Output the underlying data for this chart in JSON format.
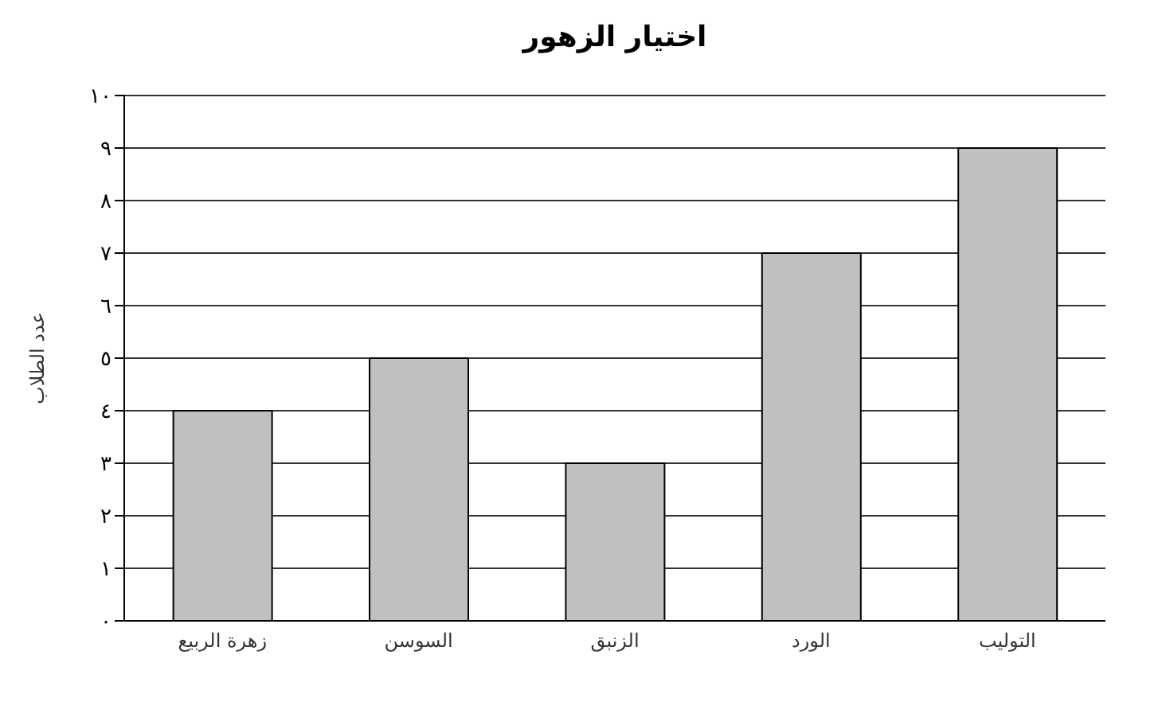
{
  "chart_data": {
    "type": "bar",
    "title": "اختيار الزهور",
    "ylabel": "عدد الطلاب",
    "categories": [
      "زهرة الربيع",
      "السوسن",
      "الزنبق",
      "الورد",
      "التوليب"
    ],
    "values": [
      4,
      5,
      3,
      7,
      9
    ],
    "color": "#c0c0c0",
    "ylim": [
      0,
      10
    ],
    "yticks": [
      {
        "value": 0,
        "label": "٠"
      },
      {
        "value": 1,
        "label": "١"
      },
      {
        "value": 2,
        "label": "٢"
      },
      {
        "value": 3,
        "label": "٣"
      },
      {
        "value": 4,
        "label": "٤"
      },
      {
        "value": 5,
        "label": "٥"
      },
      {
        "value": 6,
        "label": "٦"
      },
      {
        "value": 7,
        "label": "٧"
      },
      {
        "value": 8,
        "label": "٨"
      },
      {
        "value": 9,
        "label": "٩"
      },
      {
        "value": 10,
        "label": "١٠"
      }
    ],
    "grid": "y"
  }
}
